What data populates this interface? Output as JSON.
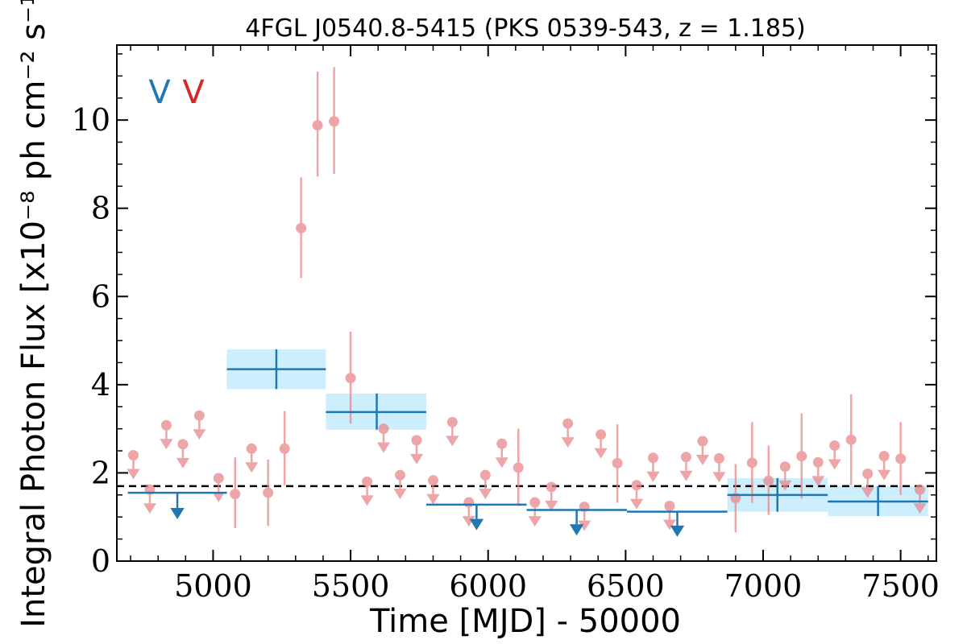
{
  "chart_data": {
    "type": "scatter",
    "title": "4FGL J0540.8-5415 (PKS 0539-543, z = 1.185)",
    "xlabel": "Time [MJD] - 50000",
    "ylabel": "Integral Photon Flux [x10⁻⁸ ph cm⁻² s⁻¹]",
    "xlim": [
      4650,
      7630
    ],
    "ylim": [
      0,
      11.7
    ],
    "x_ticks": [
      5000,
      5500,
      6000,
      6500,
      7000,
      7500
    ],
    "y_ticks": [
      0,
      2,
      4,
      6,
      8,
      10
    ],
    "legend": {
      "placement": "top-left",
      "entries": [
        {
          "label": "V",
          "color": "#1f77b4"
        },
        {
          "label": "V",
          "color": "#d62728"
        }
      ]
    },
    "reference_line": {
      "y": 1.7,
      "style": "dashed",
      "color": "#000000"
    },
    "series": [
      {
        "name": "",
        "color": "#1f77b4",
        "band_color": "#cdeefc",
        "points": [
          {
            "x0": 4690,
            "x1": 5050,
            "x": 4870,
            "ul": 1.55,
            "down_to": 0.95
          },
          {
            "x0": 5050,
            "x1": 5410,
            "x": 5230,
            "y": 4.35,
            "ylo": 3.9,
            "yhi": 4.8,
            "band_lo": 3.9,
            "band_hi": 4.8
          },
          {
            "x0": 5410,
            "x1": 5775,
            "x": 5595,
            "y": 3.38,
            "ylo": 2.98,
            "yhi": 3.8,
            "band_lo": 2.98,
            "band_hi": 3.8
          },
          {
            "x0": 5775,
            "x1": 6140,
            "x": 5958,
            "ul": 1.28,
            "down_to": 0.7
          },
          {
            "x0": 6140,
            "x1": 6505,
            "x": 6322,
            "ul": 1.16,
            "down_to": 0.58
          },
          {
            "x0": 6505,
            "x1": 6870,
            "x": 6688,
            "ul": 1.12,
            "down_to": 0.55
          },
          {
            "x0": 6870,
            "x1": 7235,
            "x": 7052,
            "y": 1.5,
            "ylo": 1.12,
            "yhi": 1.88,
            "band_lo": 1.12,
            "band_hi": 1.88
          },
          {
            "x0": 7235,
            "x1": 7600,
            "x": 7418,
            "y": 1.35,
            "ylo": 1.02,
            "yhi": 1.7,
            "band_lo": 1.02,
            "band_hi": 1.7
          }
        ]
      },
      {
        "name": "",
        "color": "#e8888c",
        "points": [
          {
            "x": 4710,
            "ul": 2.4
          },
          {
            "x": 4770,
            "ul": 1.62
          },
          {
            "x": 4830,
            "ul": 3.08
          },
          {
            "x": 4890,
            "ul": 2.65
          },
          {
            "x": 4950,
            "ul": 3.3
          },
          {
            "x": 5020,
            "ul": 1.88
          },
          {
            "x": 5080,
            "y": 1.52,
            "ylo": 0.75,
            "yhi": 2.35
          },
          {
            "x": 5140,
            "ul": 2.55
          },
          {
            "x": 5200,
            "y": 1.55,
            "ylo": 0.8,
            "yhi": 2.3
          },
          {
            "x": 5260,
            "y": 2.55,
            "ylo": 1.72,
            "yhi": 3.4
          },
          {
            "x": 5320,
            "y": 7.55,
            "ylo": 6.42,
            "yhi": 8.7
          },
          {
            "x": 5380,
            "y": 9.88,
            "ylo": 8.72,
            "yhi": 11.1
          },
          {
            "x": 5440,
            "y": 9.97,
            "ylo": 8.78,
            "yhi": 11.2
          },
          {
            "x": 5500,
            "y": 4.15,
            "ylo": 3.12,
            "yhi": 5.2
          },
          {
            "x": 5560,
            "ul": 1.8
          },
          {
            "x": 5620,
            "ul": 3.0
          },
          {
            "x": 5680,
            "ul": 1.95
          },
          {
            "x": 5740,
            "ul": 2.74
          },
          {
            "x": 5800,
            "ul": 1.83
          },
          {
            "x": 5870,
            "ul": 3.15
          },
          {
            "x": 5930,
            "ul": 1.33
          },
          {
            "x": 5990,
            "ul": 1.95
          },
          {
            "x": 6050,
            "ul": 2.66
          },
          {
            "x": 6110,
            "y": 2.12,
            "ylo": 1.25,
            "yhi": 3.0
          },
          {
            "x": 6170,
            "ul": 1.33
          },
          {
            "x": 6230,
            "ul": 1.68
          },
          {
            "x": 6290,
            "ul": 3.12
          },
          {
            "x": 6350,
            "ul": 1.23
          },
          {
            "x": 6410,
            "ul": 2.87
          },
          {
            "x": 6470,
            "y": 2.22,
            "ylo": 1.32,
            "yhi": 3.1
          },
          {
            "x": 6540,
            "ul": 1.72
          },
          {
            "x": 6600,
            "ul": 2.34
          },
          {
            "x": 6660,
            "ul": 1.25
          },
          {
            "x": 6720,
            "ul": 2.36
          },
          {
            "x": 6780,
            "ul": 2.72
          },
          {
            "x": 6840,
            "ul": 2.33
          },
          {
            "x": 6900,
            "y": 1.43,
            "ylo": 0.65,
            "yhi": 2.2
          },
          {
            "x": 6960,
            "y": 2.23,
            "ylo": 1.32,
            "yhi": 3.15
          },
          {
            "x": 7020,
            "y": 1.82,
            "ylo": 1.05,
            "yhi": 2.62
          },
          {
            "x": 7080,
            "ul": 2.14
          },
          {
            "x": 7140,
            "y": 2.38,
            "ylo": 1.42,
            "yhi": 3.35
          },
          {
            "x": 7200,
            "ul": 2.24
          },
          {
            "x": 7260,
            "ul": 2.62
          },
          {
            "x": 7320,
            "y": 2.75,
            "ylo": 1.72,
            "yhi": 3.78
          },
          {
            "x": 7380,
            "ul": 1.98
          },
          {
            "x": 7440,
            "ul": 2.38
          },
          {
            "x": 7500,
            "y": 2.32,
            "ylo": 1.5,
            "yhi": 3.15
          },
          {
            "x": 7570,
            "ul": 1.62
          }
        ]
      }
    ]
  }
}
